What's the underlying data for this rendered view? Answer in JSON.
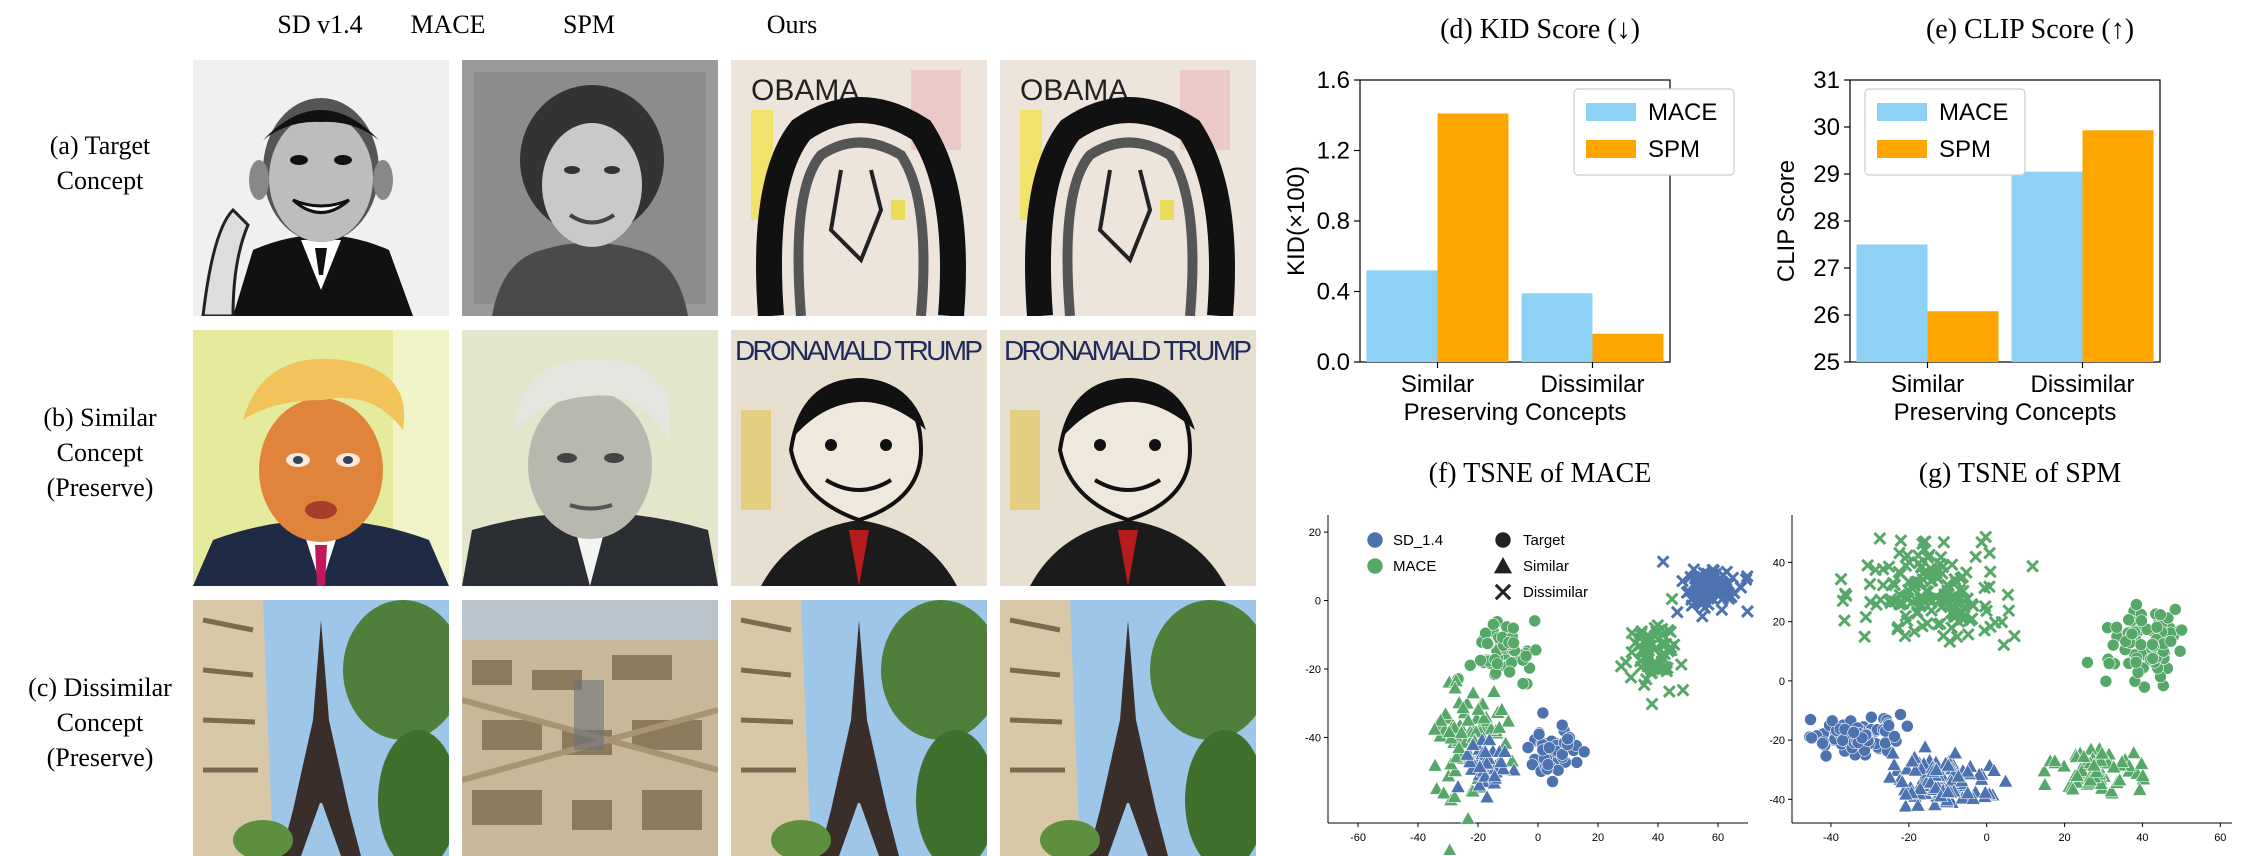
{
  "figure": {
    "columns": [
      "SD v1.4",
      "MACE",
      "SPM",
      "Ours"
    ],
    "rows": [
      {
        "label_lines": [
          "(a) Target",
          "Concept"
        ]
      },
      {
        "label_lines": [
          "(b) Similar",
          "Concept",
          "(Preserve)"
        ]
      },
      {
        "label_lines": [
          "(c) Dissimilar",
          "Concept",
          "(Preserve)"
        ]
      }
    ],
    "image_text": {
      "obama_sign": "OBAMA",
      "trump_sign": "DRONAMALD TRUMP"
    }
  },
  "chart_data": [
    {
      "type": "bar",
      "title": "(d) KID Score (↓)",
      "ylabel": "KID(×100)",
      "xlabel": "Preserving Concepts",
      "categories": [
        "Similar",
        "Dissimilar"
      ],
      "series": [
        {
          "name": "MACE",
          "values": [
            0.52,
            0.39
          ]
        },
        {
          "name": "SPM",
          "values": [
            1.41,
            0.16
          ]
        }
      ],
      "ylim": [
        0,
        1.6
      ],
      "yticks": [
        "0.0",
        "0.4",
        "0.8",
        "1.2",
        "1.6"
      ],
      "colors": {
        "MACE": "#8dd1f5",
        "SPM": "#ffa500"
      },
      "legend": "top-right"
    },
    {
      "type": "bar",
      "title": "(e) CLIP Score (↑)",
      "ylabel": "CLIP Score",
      "xlabel": "Preserving Concepts",
      "categories": [
        "Similar",
        "Dissimilar"
      ],
      "series": [
        {
          "name": "MACE",
          "values": [
            27.5,
            29.05
          ]
        },
        {
          "name": "SPM",
          "values": [
            26.08,
            29.93
          ]
        }
      ],
      "ylim": [
        25,
        31
      ],
      "yticks": [
        "25",
        "26",
        "27",
        "28",
        "29",
        "30",
        "31"
      ],
      "colors": {
        "MACE": "#8dd1f5",
        "SPM": "#ffa500"
      },
      "legend": "top-left"
    },
    {
      "type": "scatter",
      "title": "(f) TSNE of MACE",
      "xlim": [
        -70,
        70
      ],
      "ylim": [
        -65,
        25
      ],
      "xticks": [
        "-60",
        "-40",
        "-20",
        "0",
        "20",
        "40",
        "60"
      ],
      "yticks": [
        "20",
        "0",
        "-20",
        "-40"
      ],
      "legend_models": [
        {
          "name": "SD_1.4",
          "color": "#4c72b0"
        },
        {
          "name": "MACE",
          "color": "#55a868"
        }
      ],
      "legend_markers": [
        {
          "name": "Target",
          "marker": "circle"
        },
        {
          "name": "Similar",
          "marker": "triangle"
        },
        {
          "name": "Dissimilar",
          "marker": "x"
        }
      ],
      "clusters": [
        {
          "model": "SD_1.4",
          "marker": "x",
          "cx": 58,
          "cy": 4,
          "sx": 5,
          "sy": 3.5,
          "n": 80
        },
        {
          "model": "MACE",
          "marker": "x",
          "cx": 38,
          "cy": -16,
          "sx": 4,
          "sy": 5,
          "n": 70
        },
        {
          "model": "MACE",
          "marker": "circle",
          "cx": -12,
          "cy": -15,
          "sx": 5,
          "sy": 4.5,
          "n": 60
        },
        {
          "model": "MACE",
          "marker": "triangle",
          "cx": -22,
          "cy": -40,
          "sx": 6,
          "sy": 7,
          "n": 100
        },
        {
          "model": "SD_1.4",
          "marker": "triangle",
          "cx": -18,
          "cy": -48,
          "sx": 4.5,
          "sy": 4,
          "n": 40
        },
        {
          "model": "SD_1.4",
          "marker": "circle",
          "cx": 5,
          "cy": -45,
          "sx": 4,
          "sy": 3.5,
          "n": 55
        }
      ]
    },
    {
      "type": "scatter",
      "title": "(g) TSNE of SPM",
      "xlim": [
        -50,
        63
      ],
      "ylim": [
        -48,
        56
      ],
      "xticks": [
        "-40",
        "-20",
        "0",
        "20",
        "40",
        "60"
      ],
      "yticks": [
        "40",
        "20",
        "0",
        "-20",
        "-40"
      ],
      "clusters": [
        {
          "model": "MACE",
          "marker": "x",
          "cx": -13,
          "cy": 29,
          "sx": 9,
          "sy": 9,
          "n": 160
        },
        {
          "model": "MACE",
          "marker": "circle",
          "cx": 40,
          "cy": 13,
          "sx": 5,
          "sy": 6,
          "n": 90
        },
        {
          "model": "SD_1.4",
          "marker": "circle",
          "cx": -33,
          "cy": -19,
          "sx": 6,
          "sy": 3.5,
          "n": 90
        },
        {
          "model": "SD_1.4",
          "marker": "triangle",
          "cx": -12,
          "cy": -34,
          "sx": 6,
          "sy": 4.5,
          "n": 100
        },
        {
          "model": "MACE",
          "marker": "triangle",
          "cx": 29,
          "cy": -30,
          "sx": 6,
          "sy": 4,
          "n": 70
        }
      ]
    }
  ]
}
